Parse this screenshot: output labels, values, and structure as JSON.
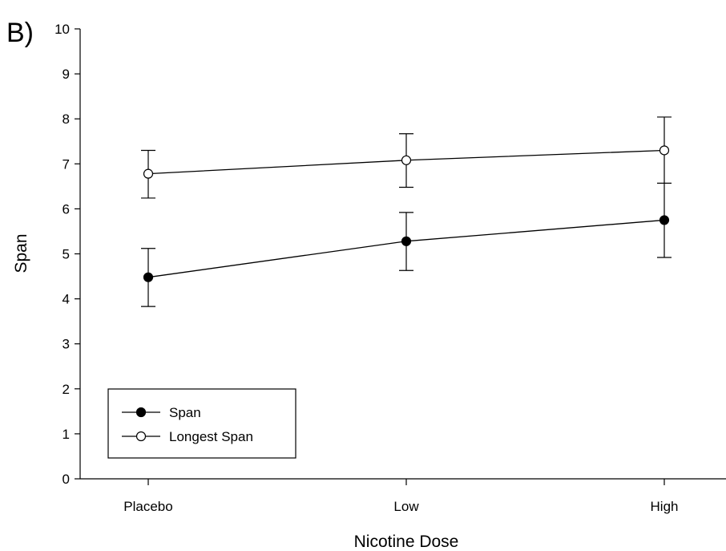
{
  "panel_label": "B)",
  "chart_data": {
    "type": "line",
    "title": "",
    "xlabel": "Nicotine Dose",
    "ylabel": "Span",
    "categories": [
      "Placebo",
      "Low",
      "High"
    ],
    "ylim": [
      0,
      10
    ],
    "yticks": [
      "0",
      "1",
      "2",
      "3",
      "4",
      "5",
      "6",
      "7",
      "8",
      "9",
      "10"
    ],
    "grid": false,
    "legend_position": "bottom-left",
    "series": [
      {
        "name": "Span",
        "marker": "filled-circle",
        "color": "#000000",
        "values": [
          4.48,
          5.28,
          5.75
        ],
        "error_upper": [
          5.12,
          5.92,
          6.57
        ],
        "error_lower": [
          3.83,
          4.63,
          4.92
        ]
      },
      {
        "name": "Longest Span",
        "marker": "open-circle",
        "color": "#000000",
        "values": [
          6.78,
          7.08,
          7.3
        ],
        "error_upper": [
          7.3,
          7.67,
          8.04
        ],
        "error_lower": [
          6.24,
          6.48,
          6.57
        ]
      }
    ]
  }
}
